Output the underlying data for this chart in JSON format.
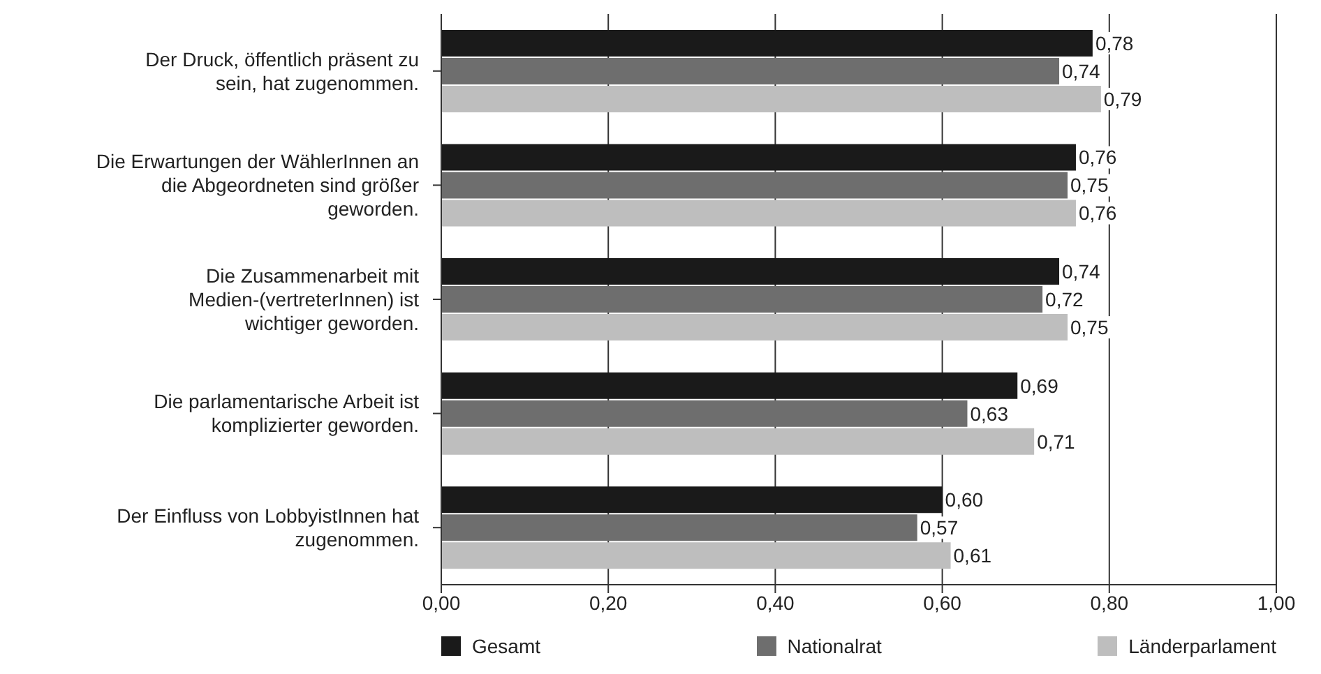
{
  "chart_data": {
    "type": "bar",
    "orientation": "horizontal",
    "categories": [
      "Der Druck, öffentlich präsent zu sein, hat zugenommen.",
      "Die Erwartungen der WählerInnen an die Abgeordneten sind größer geworden.",
      "Die Zusammenarbeit mit Medien-(vertreterInnen) ist wichtiger geworden.",
      "Die parlamentarische Arbeit ist komplizierter geworden.",
      "Der Einfluss von LobbyistInnen hat zugenommen."
    ],
    "series": [
      {
        "name": "Gesamt",
        "color": "#1a1a1a",
        "values": [
          0.78,
          0.76,
          0.74,
          0.69,
          0.6
        ],
        "value_labels": [
          "0,78",
          "0,76",
          "0,74",
          "0,69",
          "0,60"
        ]
      },
      {
        "name": "Nationalrat",
        "color": "#6e6e6e",
        "values": [
          0.74,
          0.75,
          0.72,
          0.63,
          0.57
        ],
        "value_labels": [
          "0,74",
          "0,75",
          "0,72",
          "0,63",
          "0,57"
        ]
      },
      {
        "name": "Länderparlament",
        "color": "#bebebe",
        "values": [
          0.79,
          0.76,
          0.75,
          0.71,
          0.61
        ],
        "value_labels": [
          "0,79",
          "0,76",
          "0,75",
          "0,71",
          "0,61"
        ]
      }
    ],
    "xlim": [
      0,
      1
    ],
    "xticks": [
      {
        "value": 0,
        "label": "0,00"
      },
      {
        "value": 0.2,
        "label": "0,20"
      },
      {
        "value": 0.4,
        "label": "0,40"
      },
      {
        "value": 0.6,
        "label": "0,60"
      },
      {
        "value": 0.8,
        "label": "0,80"
      },
      {
        "value": 1,
        "label": "1,00"
      }
    ],
    "grid": "x",
    "legend": "bottom"
  }
}
